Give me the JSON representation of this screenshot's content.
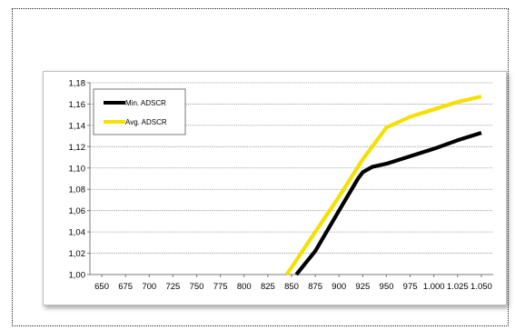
{
  "chart_data": {
    "type": "line",
    "title": "",
    "xlabel": "",
    "ylabel": "",
    "x": [
      850,
      875,
      900,
      925,
      950,
      975,
      1000,
      1025,
      1050
    ],
    "x_tick_labels": [
      "650",
      "675",
      "700",
      "725",
      "750",
      "775",
      "800",
      "825",
      "850",
      "875",
      "900",
      "925",
      "950",
      "975",
      "1.000",
      "1.025",
      "1.050"
    ],
    "y_tick_labels": [
      "1,00",
      "1,02",
      "1,04",
      "1,06",
      "1,08",
      "1,10",
      "1,12",
      "1,14",
      "1,16",
      "1,18"
    ],
    "xlim": [
      650,
      1050
    ],
    "ylim": [
      1.0,
      1.18
    ],
    "grid": "horizontal",
    "legend_position": "top-left",
    "series": [
      {
        "name": "Min. ADSCR",
        "color": "#000000",
        "points": [
          [
            855,
            1.0
          ],
          [
            875,
            1.022
          ],
          [
            900,
            1.06
          ],
          [
            920,
            1.09
          ],
          [
            925,
            1.096
          ],
          [
            935,
            1.101
          ],
          [
            950,
            1.104
          ],
          [
            975,
            1.111
          ],
          [
            1000,
            1.118
          ],
          [
            1025,
            1.126
          ],
          [
            1050,
            1.133
          ]
        ]
      },
      {
        "name": "Avg. ADSCR",
        "color": "#f5e000",
        "points": [
          [
            845,
            1.0
          ],
          [
            875,
            1.04
          ],
          [
            900,
            1.073
          ],
          [
            925,
            1.108
          ],
          [
            950,
            1.138
          ],
          [
            975,
            1.148
          ],
          [
            1000,
            1.155
          ],
          [
            1025,
            1.162
          ],
          [
            1050,
            1.167
          ]
        ]
      }
    ]
  }
}
